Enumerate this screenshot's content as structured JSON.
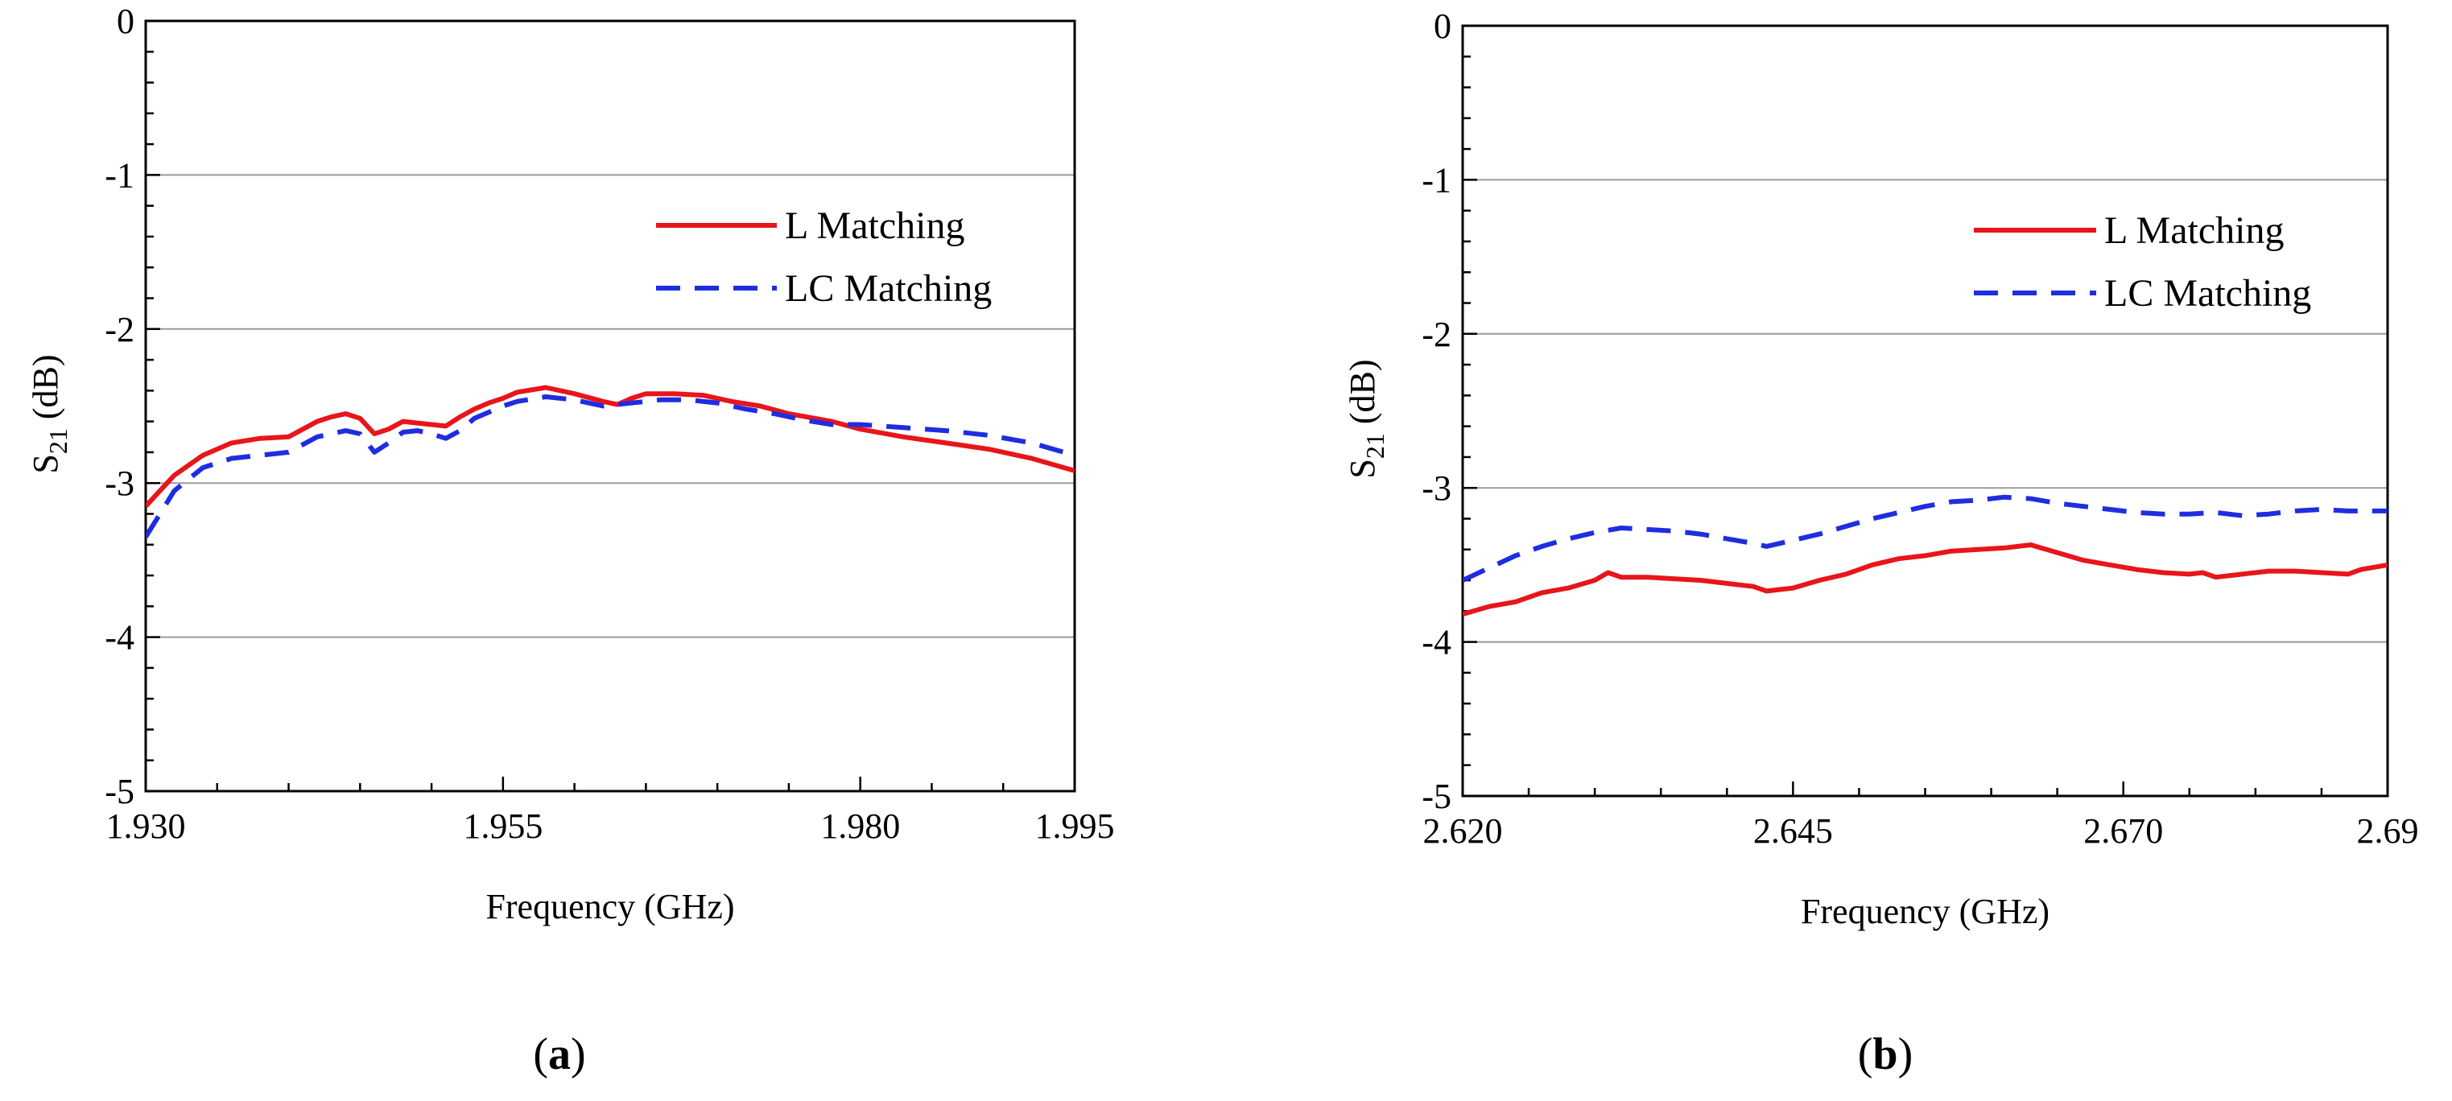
{
  "figure": {
    "panels": [
      {
        "id": "a",
        "label_open": "(",
        "label_letter": "a",
        "label_close": ")"
      },
      {
        "id": "b",
        "label_open": "(",
        "label_letter": "b",
        "label_close": ")"
      }
    ]
  },
  "chart_data": [
    {
      "type": "line",
      "xlabel": "Frequency (GHz)",
      "ylabel_main": "S",
      "ylabel_sub": "21",
      "ylabel_unit": " (dB)",
      "xlim": [
        1.93,
        1.995
      ],
      "ylim": [
        -5,
        0
      ],
      "xticks": [
        1.93,
        1.955,
        1.98,
        1.995
      ],
      "xtick_labels": [
        "1.930",
        "1.955",
        "1.980",
        "1.995"
      ],
      "yticks": [
        0,
        -1,
        -2,
        -3,
        -4,
        -5
      ],
      "ytick_labels": [
        "0",
        "-1",
        "-2",
        "-3",
        "-4",
        "-5"
      ],
      "grid": "horizontal",
      "legend_position": "top-right",
      "series": [
        {
          "name": "L Matching",
          "color": "#e8151b",
          "dash": "solid",
          "x": [
            1.93,
            1.932,
            1.934,
            1.936,
            1.938,
            1.94,
            1.941,
            1.942,
            1.943,
            1.944,
            1.945,
            1.946,
            1.947,
            1.948,
            1.949,
            1.95,
            1.951,
            1.952,
            1.953,
            1.954,
            1.955,
            1.956,
            1.958,
            1.96,
            1.962,
            1.963,
            1.964,
            1.965,
            1.967,
            1.969,
            1.971,
            1.973,
            1.975,
            1.978,
            1.98,
            1.983,
            1.986,
            1.989,
            1.992,
            1.995
          ],
          "y": [
            -3.15,
            -2.95,
            -2.82,
            -2.74,
            -2.71,
            -2.7,
            -2.65,
            -2.6,
            -2.57,
            -2.55,
            -2.58,
            -2.68,
            -2.65,
            -2.6,
            -2.61,
            -2.62,
            -2.63,
            -2.57,
            -2.52,
            -2.48,
            -2.45,
            -2.41,
            -2.38,
            -2.42,
            -2.47,
            -2.49,
            -2.45,
            -2.42,
            -2.42,
            -2.43,
            -2.47,
            -2.5,
            -2.55,
            -2.6,
            -2.65,
            -2.7,
            -2.74,
            -2.78,
            -2.84,
            -2.92
          ]
        },
        {
          "name": "LC Matching",
          "color": "#1f2de0",
          "dash": "dashed",
          "x": [
            1.93,
            1.932,
            1.934,
            1.936,
            1.938,
            1.94,
            1.942,
            1.944,
            1.945,
            1.946,
            1.947,
            1.948,
            1.949,
            1.95,
            1.951,
            1.952,
            1.953,
            1.954,
            1.955,
            1.956,
            1.958,
            1.96,
            1.962,
            1.964,
            1.966,
            1.968,
            1.97,
            1.972,
            1.974,
            1.976,
            1.978,
            1.98,
            1.983,
            1.986,
            1.989,
            1.992,
            1.995
          ],
          "y": [
            -3.35,
            -3.05,
            -2.9,
            -2.84,
            -2.82,
            -2.8,
            -2.7,
            -2.66,
            -2.68,
            -2.8,
            -2.74,
            -2.67,
            -2.66,
            -2.68,
            -2.71,
            -2.66,
            -2.58,
            -2.54,
            -2.5,
            -2.47,
            -2.44,
            -2.46,
            -2.5,
            -2.48,
            -2.46,
            -2.46,
            -2.48,
            -2.52,
            -2.55,
            -2.59,
            -2.62,
            -2.62,
            -2.64,
            -2.66,
            -2.69,
            -2.74,
            -2.82
          ]
        }
      ]
    },
    {
      "type": "line",
      "xlabel": "Frequency (GHz)",
      "ylabel_main": "S",
      "ylabel_sub": "21",
      "ylabel_unit": " (dB)",
      "xlim": [
        2.62,
        2.69
      ],
      "ylim": [
        -5,
        0
      ],
      "xticks": [
        2.62,
        2.645,
        2.67,
        2.69
      ],
      "xtick_labels": [
        "2.620",
        "2.645",
        "2.670",
        "2.69"
      ],
      "yticks": [
        0,
        -1,
        -2,
        -3,
        -4,
        -5
      ],
      "ytick_labels": [
        "0",
        "-1",
        "-2",
        "-3",
        "-4",
        "-5"
      ],
      "grid": "horizontal",
      "legend_position": "top-right",
      "series": [
        {
          "name": "L Matching",
          "color": "#e8151b",
          "dash": "solid",
          "x": [
            2.62,
            2.622,
            2.624,
            2.626,
            2.628,
            2.63,
            2.631,
            2.632,
            2.634,
            2.636,
            2.638,
            2.64,
            2.642,
            2.643,
            2.645,
            2.647,
            2.649,
            2.651,
            2.653,
            2.655,
            2.657,
            2.659,
            2.661,
            2.663,
            2.665,
            2.667,
            2.669,
            2.671,
            2.673,
            2.675,
            2.676,
            2.677,
            2.679,
            2.681,
            2.683,
            2.685,
            2.687,
            2.688,
            2.69
          ],
          "y": [
            -3.82,
            -3.77,
            -3.74,
            -3.68,
            -3.65,
            -3.6,
            -3.55,
            -3.58,
            -3.58,
            -3.59,
            -3.6,
            -3.62,
            -3.64,
            -3.67,
            -3.65,
            -3.6,
            -3.56,
            -3.5,
            -3.46,
            -3.44,
            -3.41,
            -3.4,
            -3.39,
            -3.37,
            -3.42,
            -3.47,
            -3.5,
            -3.53,
            -3.55,
            -3.56,
            -3.55,
            -3.58,
            -3.56,
            -3.54,
            -3.54,
            -3.55,
            -3.56,
            -3.53,
            -3.5
          ]
        },
        {
          "name": "LC Matching",
          "color": "#1f2de0",
          "dash": "dashed",
          "x": [
            2.62,
            2.622,
            2.624,
            2.626,
            2.628,
            2.63,
            2.632,
            2.634,
            2.636,
            2.638,
            2.64,
            2.642,
            2.643,
            2.645,
            2.647,
            2.649,
            2.651,
            2.653,
            2.655,
            2.657,
            2.659,
            2.661,
            2.663,
            2.665,
            2.667,
            2.669,
            2.671,
            2.673,
            2.675,
            2.677,
            2.679,
            2.681,
            2.683,
            2.685,
            2.687,
            2.69
          ],
          "y": [
            -3.6,
            -3.52,
            -3.44,
            -3.38,
            -3.33,
            -3.29,
            -3.26,
            -3.27,
            -3.28,
            -3.3,
            -3.33,
            -3.36,
            -3.38,
            -3.34,
            -3.3,
            -3.25,
            -3.2,
            -3.16,
            -3.12,
            -3.09,
            -3.08,
            -3.06,
            -3.07,
            -3.1,
            -3.12,
            -3.14,
            -3.16,
            -3.17,
            -3.17,
            -3.16,
            -3.18,
            -3.17,
            -3.15,
            -3.14,
            -3.15,
            -3.15
          ]
        }
      ]
    }
  ]
}
